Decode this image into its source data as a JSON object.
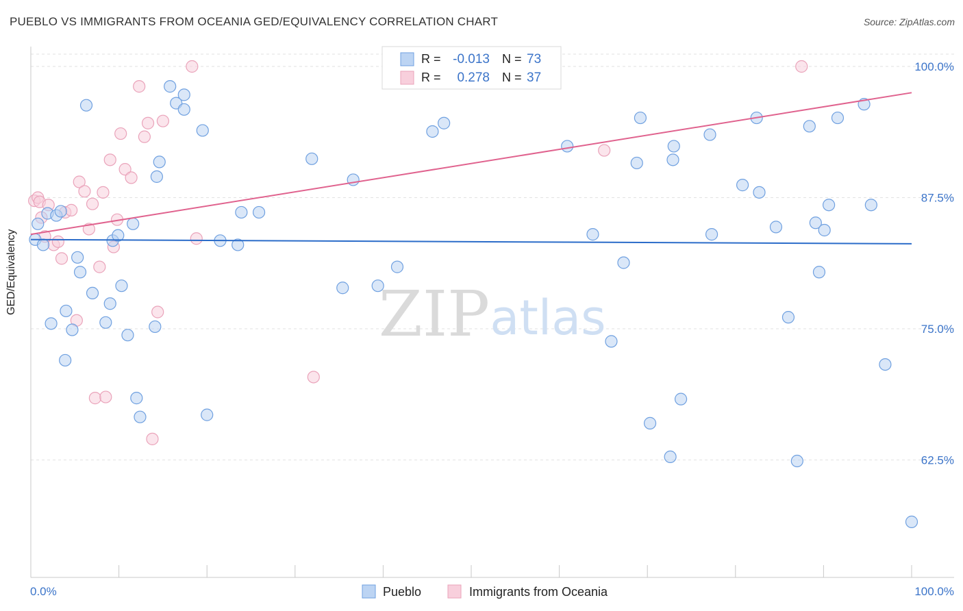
{
  "chart_data": {
    "type": "scatter",
    "title": "PUEBLO VS IMMIGRANTS FROM OCEANIA GED/EQUIVALENCY CORRELATION CHART",
    "source": "Source: ZipAtlas.com",
    "ylabel": "GED/Equivalency",
    "xlabel": "",
    "x_tick_labels": [
      "0.0%",
      "100.0%"
    ],
    "y_tick_labels": [
      "100.0%",
      "87.5%",
      "75.0%",
      "62.5%"
    ],
    "y_tick_values": [
      100.0,
      87.5,
      75.0,
      62.5
    ],
    "xlim": [
      0,
      100
    ],
    "ylim": [
      52.3,
      101.5
    ],
    "grid": true,
    "watermark": {
      "zip": "ZIP",
      "atlas": "atlas"
    },
    "legend_position": "top-center",
    "stats": [
      {
        "r_label": "R =",
        "r_value": "-0.013",
        "n_label": "N =",
        "n_value": "73"
      },
      {
        "r_label": "R =",
        "r_value": "0.278",
        "n_label": "N =",
        "n_value": "37"
      }
    ],
    "series": [
      {
        "name": "Pueblo",
        "color": "#6fa0e0",
        "fill": "#bcd4f3",
        "trend": {
          "x": [
            0,
            100
          ],
          "y": [
            83.5,
            83.1
          ],
          "color": "#2b6cc9"
        },
        "points": [
          [
            0.5,
            83.5
          ],
          [
            0.8,
            85.0
          ],
          [
            1.4,
            83.0
          ],
          [
            1.9,
            86.0
          ],
          [
            2.3,
            75.5
          ],
          [
            2.9,
            85.8
          ],
          [
            3.4,
            86.2
          ],
          [
            3.9,
            72.0
          ],
          [
            4.0,
            76.7
          ],
          [
            4.7,
            74.9
          ],
          [
            5.3,
            81.8
          ],
          [
            5.6,
            80.4
          ],
          [
            6.3,
            96.3
          ],
          [
            7.0,
            78.4
          ],
          [
            8.5,
            75.6
          ],
          [
            9.0,
            77.4
          ],
          [
            9.3,
            83.4
          ],
          [
            9.9,
            83.9
          ],
          [
            10.3,
            79.1
          ],
          [
            11.0,
            74.4
          ],
          [
            11.6,
            85.0
          ],
          [
            12.0,
            68.4
          ],
          [
            12.4,
            66.6
          ],
          [
            14.1,
            75.2
          ],
          [
            14.3,
            89.5
          ],
          [
            14.6,
            90.9
          ],
          [
            15.8,
            98.1
          ],
          [
            16.5,
            96.5
          ],
          [
            17.4,
            97.3
          ],
          [
            17.4,
            95.9
          ],
          [
            19.5,
            93.9
          ],
          [
            20.0,
            66.8
          ],
          [
            21.5,
            83.4
          ],
          [
            23.5,
            83.0
          ],
          [
            23.9,
            86.1
          ],
          [
            25.9,
            86.1
          ],
          [
            31.9,
            91.2
          ],
          [
            35.4,
            78.9
          ],
          [
            36.6,
            89.2
          ],
          [
            39.4,
            79.1
          ],
          [
            41.6,
            80.9
          ],
          [
            42.3,
            100.0
          ],
          [
            45.6,
            93.8
          ],
          [
            46.9,
            94.6
          ],
          [
            60.9,
            92.4
          ],
          [
            63.8,
            84.0
          ],
          [
            65.9,
            73.8
          ],
          [
            67.3,
            81.3
          ],
          [
            68.8,
            90.8
          ],
          [
            69.2,
            95.1
          ],
          [
            70.3,
            66.0
          ],
          [
            72.6,
            62.8
          ],
          [
            72.9,
            91.1
          ],
          [
            73.0,
            92.4
          ],
          [
            73.8,
            68.3
          ],
          [
            77.1,
            93.5
          ],
          [
            77.3,
            84.0
          ],
          [
            80.8,
            88.7
          ],
          [
            82.4,
            95.1
          ],
          [
            82.7,
            88.0
          ],
          [
            84.6,
            84.7
          ],
          [
            86.0,
            76.1
          ],
          [
            87.0,
            62.4
          ],
          [
            88.4,
            94.3
          ],
          [
            89.1,
            85.1
          ],
          [
            89.5,
            80.4
          ],
          [
            90.1,
            84.4
          ],
          [
            90.6,
            86.8
          ],
          [
            91.6,
            95.1
          ],
          [
            94.6,
            96.4
          ],
          [
            95.4,
            86.8
          ],
          [
            97.0,
            71.6
          ],
          [
            100.0,
            56.6
          ]
        ]
      },
      {
        "name": "Immigrants from Oceania",
        "color": "#eaa3ba",
        "fill": "#f8cfdc",
        "trend": {
          "x": [
            0,
            100
          ],
          "y": [
            84.0,
            97.5
          ],
          "color": "#e0628e"
        },
        "points": [
          [
            0.4,
            87.2
          ],
          [
            0.8,
            87.5
          ],
          [
            1.0,
            87.1
          ],
          [
            1.2,
            85.6
          ],
          [
            1.6,
            83.8
          ],
          [
            2.0,
            86.8
          ],
          [
            2.6,
            83.0
          ],
          [
            3.1,
            83.3
          ],
          [
            3.5,
            81.7
          ],
          [
            3.9,
            86.1
          ],
          [
            4.6,
            86.3
          ],
          [
            5.2,
            75.8
          ],
          [
            5.5,
            89.0
          ],
          [
            6.1,
            88.1
          ],
          [
            6.6,
            84.5
          ],
          [
            7.0,
            86.9
          ],
          [
            7.3,
            68.4
          ],
          [
            7.8,
            80.9
          ],
          [
            8.2,
            88.0
          ],
          [
            8.5,
            68.5
          ],
          [
            9.0,
            91.1
          ],
          [
            9.4,
            82.8
          ],
          [
            9.8,
            85.4
          ],
          [
            10.2,
            93.6
          ],
          [
            10.7,
            90.2
          ],
          [
            11.4,
            89.4
          ],
          [
            12.3,
            98.1
          ],
          [
            12.9,
            93.3
          ],
          [
            13.3,
            94.6
          ],
          [
            13.8,
            64.5
          ],
          [
            14.4,
            76.6
          ],
          [
            15.0,
            94.8
          ],
          [
            18.3,
            100.0
          ],
          [
            18.8,
            83.6
          ],
          [
            32.1,
            70.4
          ],
          [
            65.1,
            92.0
          ],
          [
            87.5,
            100.0
          ]
        ]
      }
    ]
  }
}
